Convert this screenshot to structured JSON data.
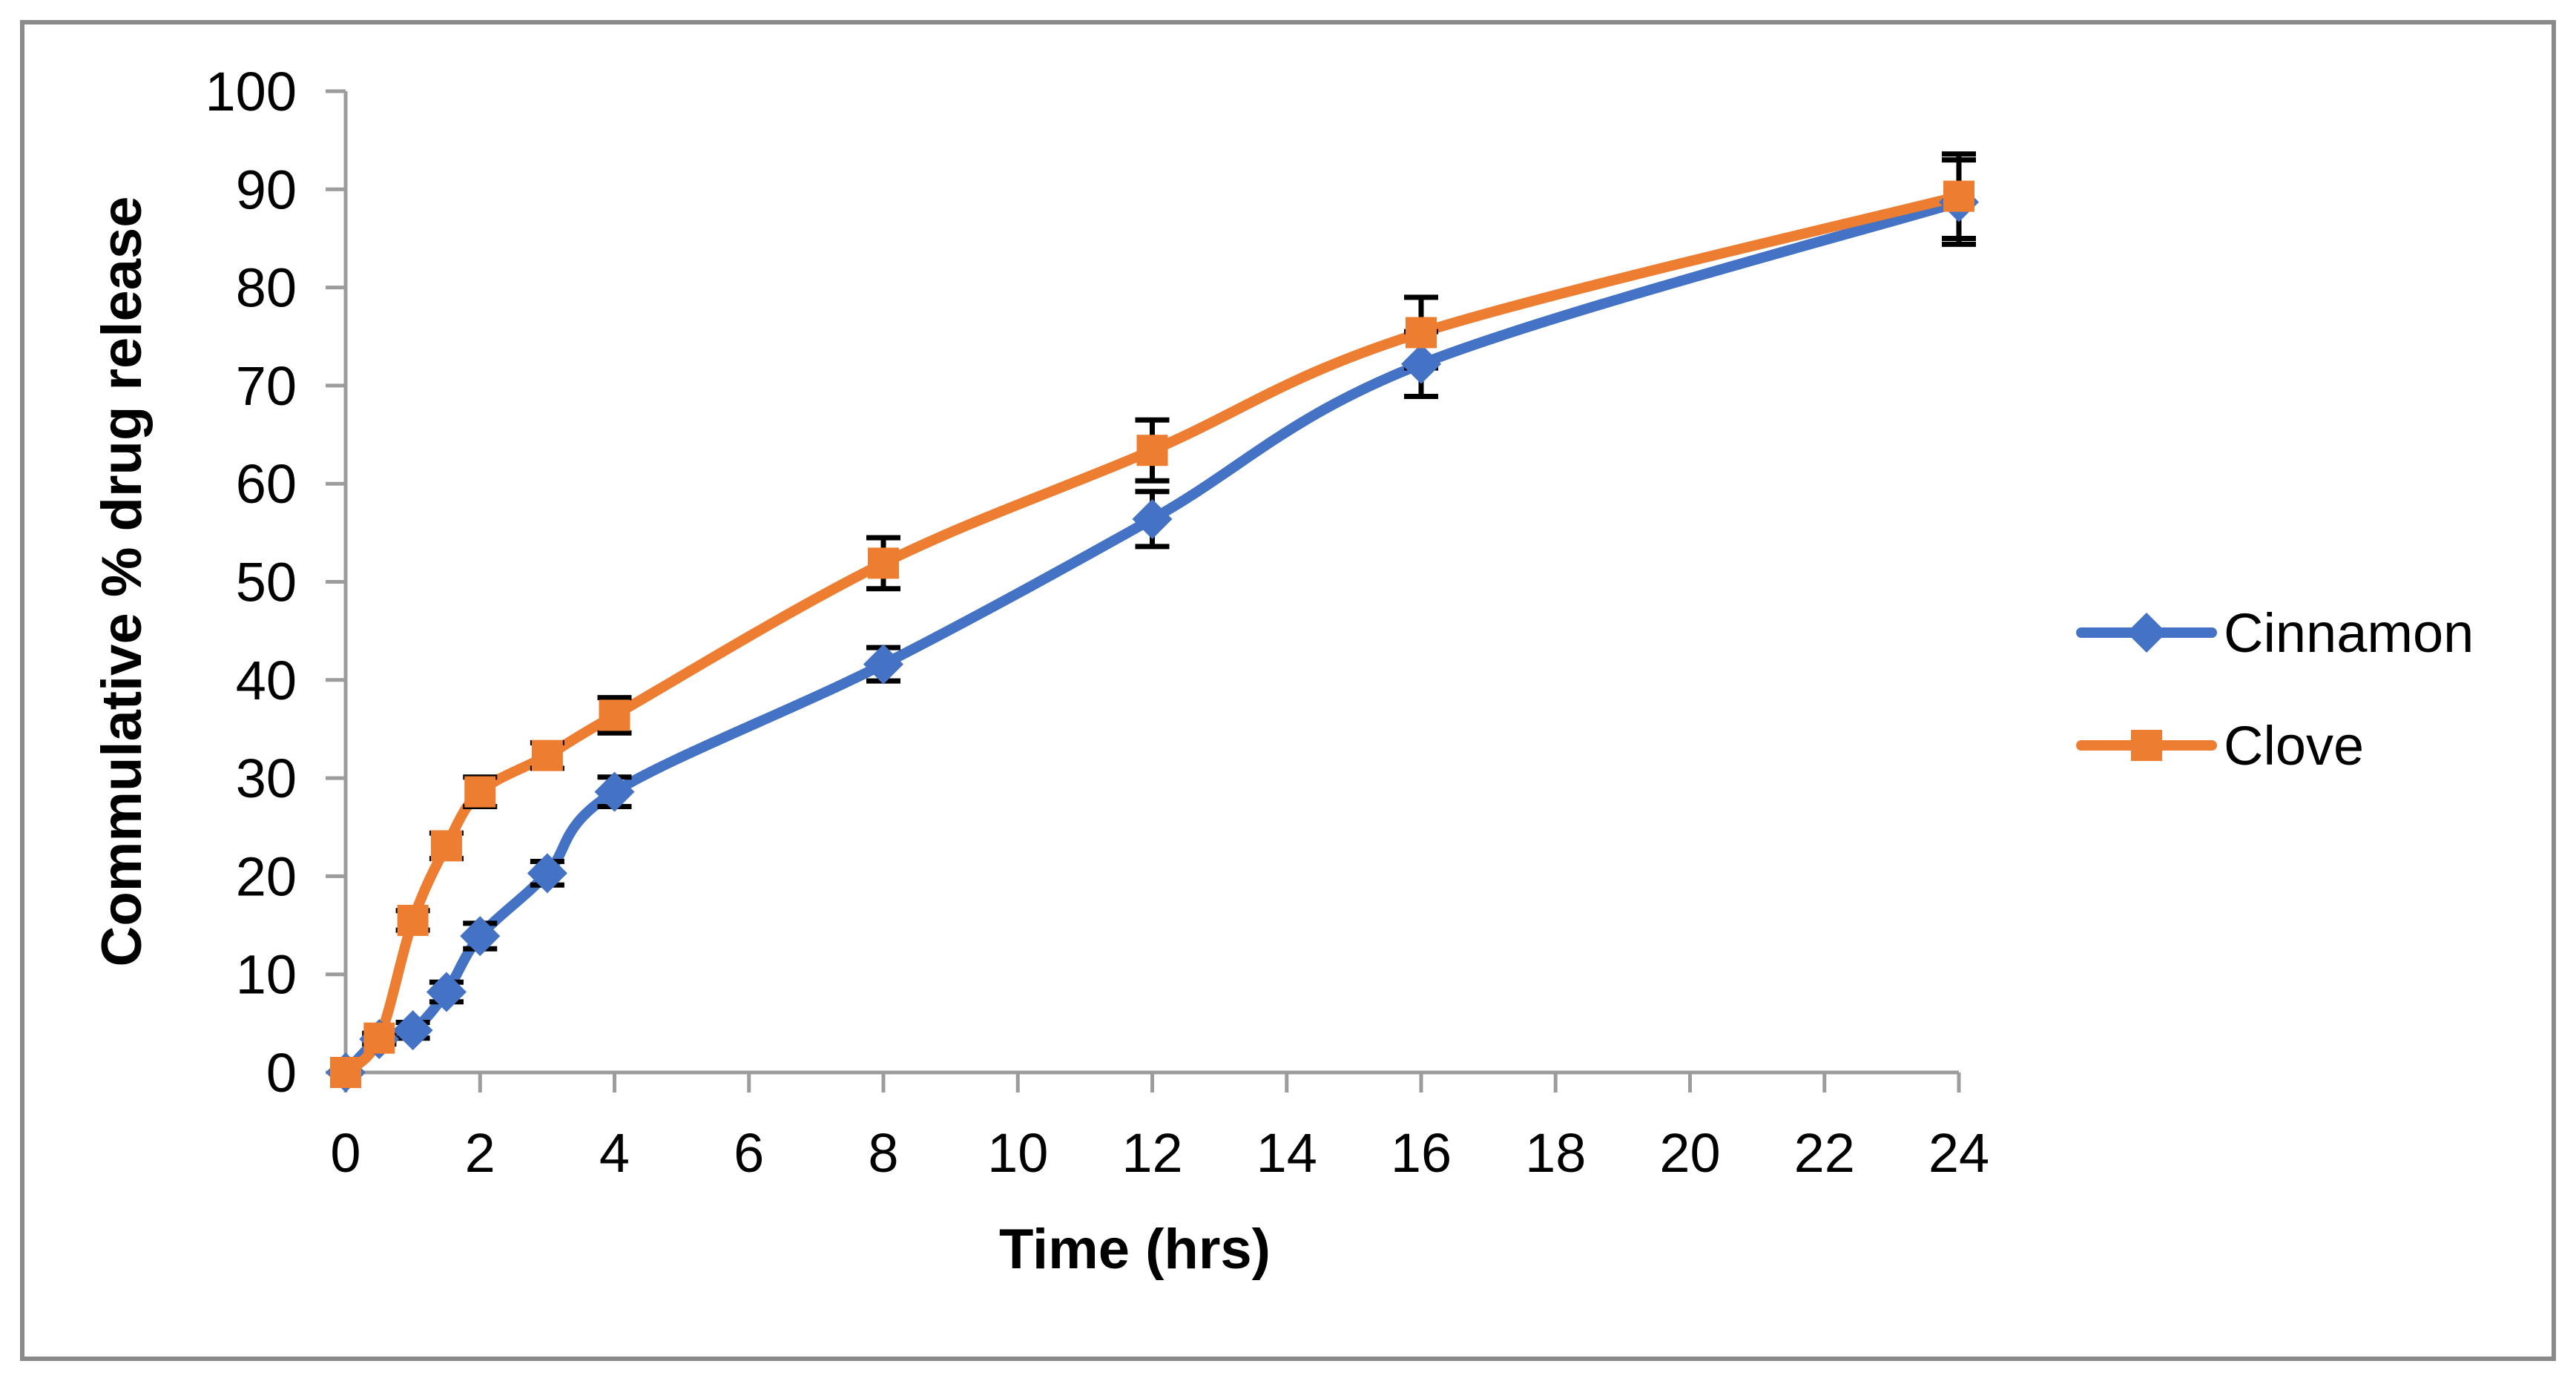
{
  "figure": {
    "background": "#ffffff",
    "border_color": "#8A8A8A"
  },
  "chart_data": {
    "type": "line",
    "title": "",
    "xlabel": "Time (hrs)",
    "ylabel": "Commulative % drug release",
    "xlim": [
      0,
      24
    ],
    "ylim": [
      0,
      100
    ],
    "x_ticks": [
      0,
      2,
      4,
      6,
      8,
      10,
      12,
      14,
      16,
      18,
      20,
      22,
      24
    ],
    "y_ticks": [
      0,
      10,
      20,
      30,
      40,
      50,
      60,
      70,
      80,
      90,
      100
    ],
    "grid": false,
    "legend_position": "right",
    "axis_color": "#9C9C9C",
    "error_bar_color": "#000000",
    "smooth_lines": true,
    "x": [
      0,
      0.5,
      1,
      1.5,
      2,
      3,
      4,
      8,
      12,
      16,
      24
    ],
    "series": [
      {
        "name": "Cinnamon",
        "color": "#4472C4",
        "marker": "diamond",
        "values": [
          0,
          3.4,
          4.3,
          8.2,
          13.9,
          20.3,
          28.6,
          41.6,
          56.4,
          72.2,
          88.7
        ],
        "errors": [
          0,
          0.5,
          0.8,
          1.0,
          1.3,
          1.2,
          1.5,
          1.7,
          2.8,
          3.3,
          4.3
        ]
      },
      {
        "name": "Clove",
        "color": "#ED7D31",
        "marker": "square",
        "values": [
          0,
          3.5,
          15.5,
          23.1,
          28.6,
          32.3,
          36.4,
          51.9,
          63.4,
          75.4,
          89.3
        ],
        "errors": [
          0,
          0.5,
          1.0,
          1.3,
          1.5,
          1.3,
          1.8,
          2.6,
          3.1,
          3.6,
          4.3
        ]
      }
    ]
  }
}
